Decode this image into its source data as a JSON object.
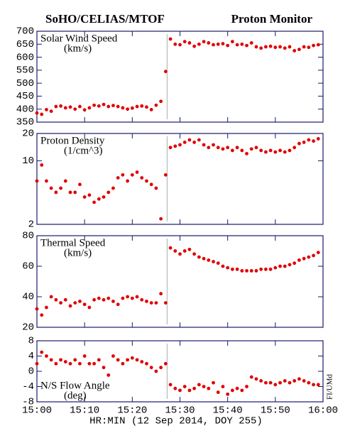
{
  "header": {
    "left": "SoHO/CELIAS/MTOF",
    "right": "Proton Monitor",
    "credit": "FI/UMd"
  },
  "xlabel": "HR:MIN (12 Sep 2014, DOY 255)",
  "xlim": [
    0,
    60
  ],
  "xticks": [
    {
      "value": 0,
      "label": "15:00"
    },
    {
      "value": 10,
      "label": "15:10"
    },
    {
      "value": 20,
      "label": "15:20"
    },
    {
      "value": 30,
      "label": "15:30"
    },
    {
      "value": 40,
      "label": "15:40"
    },
    {
      "value": 50,
      "label": "15:50"
    },
    {
      "value": 60,
      "label": "16:00"
    }
  ],
  "vline": 27.3,
  "chart_data": [
    {
      "type": "scatter",
      "title": "Solar Wind Speed",
      "unit": "(km/s)",
      "color": "#e00000",
      "log": false,
      "ylim": [
        350,
        700
      ],
      "yticks": [
        350,
        400,
        450,
        500,
        550,
        600,
        650,
        700
      ],
      "x": [
        0,
        1,
        2,
        3,
        4,
        5,
        6,
        7,
        8,
        9,
        10,
        11,
        12,
        13,
        14,
        15,
        16,
        17,
        18,
        19,
        20,
        21,
        22,
        23,
        24,
        25,
        26,
        27,
        28,
        29,
        30,
        31,
        32,
        33,
        34,
        35,
        36,
        37,
        38,
        39,
        40,
        41,
        42,
        43,
        44,
        45,
        46,
        47,
        48,
        49,
        50,
        51,
        52,
        53,
        54,
        55,
        56,
        57,
        58,
        59
      ],
      "values": [
        385,
        380,
        398,
        392,
        410,
        412,
        405,
        408,
        400,
        410,
        397,
        405,
        415,
        412,
        418,
        410,
        414,
        410,
        405,
        400,
        404,
        410,
        412,
        408,
        398,
        415,
        430,
        545,
        670,
        650,
        648,
        660,
        655,
        642,
        650,
        660,
        655,
        648,
        650,
        652,
        645,
        660,
        648,
        650,
        645,
        655,
        640,
        635,
        640,
        642,
        638,
        640,
        635,
        640,
        625,
        630,
        640,
        638,
        645,
        648
      ]
    },
    {
      "type": "scatter",
      "title": "Proton Density",
      "unit": "(1/cm^3)",
      "color": "#e00000",
      "log": true,
      "ylim": [
        2,
        20
      ],
      "yticks": [
        2,
        10,
        20
      ],
      "x": [
        0,
        1,
        2,
        3,
        4,
        5,
        6,
        7,
        8,
        9,
        10,
        11,
        12,
        13,
        14,
        15,
        16,
        17,
        18,
        19,
        20,
        21,
        22,
        23,
        24,
        25,
        26,
        27,
        28,
        29,
        30,
        31,
        32,
        33,
        34,
        35,
        36,
        37,
        38,
        39,
        40,
        41,
        42,
        43,
        44,
        45,
        46,
        47,
        48,
        49,
        50,
        51,
        52,
        53,
        54,
        55,
        56,
        57,
        58,
        59
      ],
      "values": [
        6,
        9,
        6,
        5,
        4.5,
        5,
        6,
        4.5,
        4.5,
        5.5,
        4,
        4.2,
        3.5,
        3.8,
        4,
        4.5,
        5,
        6.5,
        7,
        6,
        7,
        7.5,
        6.5,
        6,
        5.5,
        5,
        2.3,
        7,
        14,
        14.5,
        15,
        16,
        17,
        16,
        17,
        15,
        14,
        15,
        14,
        13.5,
        14,
        13,
        14,
        13,
        12,
        13.5,
        14,
        13,
        12.5,
        13,
        12.5,
        13,
        12.5,
        13,
        14,
        15.5,
        16,
        17,
        16.5,
        17.5
      ]
    },
    {
      "type": "scatter",
      "title": "Thermal Speed",
      "unit": "(km/s)",
      "color": "#e00000",
      "log": false,
      "ylim": [
        20,
        80
      ],
      "yticks": [
        20,
        40,
        60,
        80
      ],
      "x": [
        0,
        1,
        2,
        3,
        4,
        5,
        6,
        7,
        8,
        9,
        10,
        11,
        12,
        13,
        14,
        15,
        16,
        17,
        18,
        19,
        20,
        21,
        22,
        23,
        24,
        25,
        26,
        27,
        28,
        29,
        30,
        31,
        32,
        33,
        34,
        35,
        36,
        37,
        38,
        39,
        40,
        41,
        42,
        43,
        44,
        45,
        46,
        47,
        48,
        49,
        50,
        51,
        52,
        53,
        54,
        55,
        56,
        57,
        58,
        59
      ],
      "values": [
        32,
        28,
        33,
        40,
        38,
        36,
        38,
        34,
        36,
        37,
        35,
        33,
        38,
        39,
        38,
        39,
        37,
        35,
        39,
        40,
        39,
        40,
        38,
        37,
        36,
        36,
        42,
        36,
        72,
        70,
        68,
        70,
        71,
        68,
        66,
        65,
        64,
        63,
        62,
        60,
        59,
        58,
        58,
        57,
        57,
        57,
        57,
        58,
        58,
        58,
        59,
        60,
        60,
        61,
        62,
        64,
        65,
        66,
        67,
        69
      ]
    },
    {
      "type": "scatter",
      "title": "N/S Flow Angle",
      "unit": "(deg)",
      "color": "#e00000",
      "log": false,
      "label_bottom": true,
      "ylim": [
        -8,
        8
      ],
      "yticks": [
        -8,
        -4,
        0,
        4,
        8
      ],
      "x": [
        0,
        1,
        2,
        3,
        4,
        5,
        6,
        7,
        8,
        9,
        10,
        11,
        12,
        13,
        14,
        15,
        16,
        17,
        18,
        19,
        20,
        21,
        22,
        23,
        24,
        25,
        26,
        27,
        28,
        29,
        30,
        31,
        32,
        33,
        34,
        35,
        36,
        37,
        38,
        39,
        40,
        41,
        42,
        43,
        44,
        45,
        46,
        47,
        48,
        49,
        50,
        51,
        52,
        53,
        54,
        55,
        56,
        57,
        58,
        59
      ],
      "values": [
        2,
        5,
        4,
        3,
        2,
        3,
        2.5,
        2,
        3,
        2,
        4,
        2,
        2,
        3,
        1,
        -1,
        4,
        3,
        2,
        3,
        3.5,
        3,
        2.5,
        2,
        1,
        0,
        1,
        2,
        -3.5,
        -4.5,
        -5,
        -4,
        -5,
        -4.5,
        -3.5,
        -4,
        -4.5,
        -3,
        -5.5,
        -4,
        -6,
        -5,
        -4.5,
        -5,
        -4,
        -1.5,
        -2,
        -2.5,
        -3,
        -3,
        -3.5,
        -3,
        -2.5,
        -3,
        -2.5,
        -2,
        -2.5,
        -3,
        -3.5,
        -3.5
      ]
    }
  ]
}
